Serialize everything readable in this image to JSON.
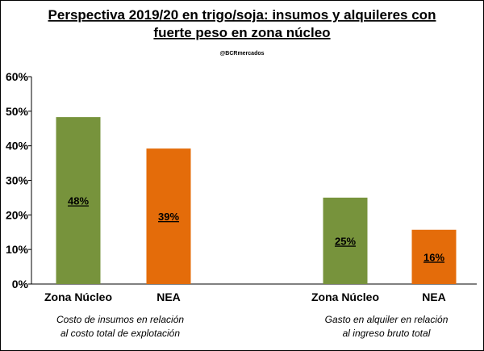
{
  "chart_data": {
    "type": "bar",
    "title": [
      "Perspectiva 2019/20 en trigo/soja: insumos y alquileres con",
      "fuerte peso en zona núcleo"
    ],
    "credit": "@BCRmercados",
    "ylim": [
      0,
      60
    ],
    "yticks": [
      "0%",
      "10%",
      "20%",
      "30%",
      "40%",
      "50%",
      "60%"
    ],
    "groups": [
      {
        "caption": [
          "Costo de insumos en relación",
          "al costo total de explotación"
        ],
        "bars": [
          {
            "category": "Zona Núcleo",
            "value": 48.3,
            "label": "48%",
            "color": "#77933c"
          },
          {
            "category": "NEA",
            "value": 39.2,
            "label": "39%",
            "color": "#e46c0a"
          }
        ]
      },
      {
        "caption": [
          "Gasto en alquiler en relación",
          "al ingreso bruto total"
        ],
        "bars": [
          {
            "category": "Zona Núcleo",
            "value": 25,
            "label": "25%",
            "color": "#77933c"
          },
          {
            "category": "NEA",
            "value": 15.7,
            "label": "16%",
            "color": "#e46c0a"
          }
        ]
      }
    ],
    "grid": false,
    "legend": "none"
  }
}
